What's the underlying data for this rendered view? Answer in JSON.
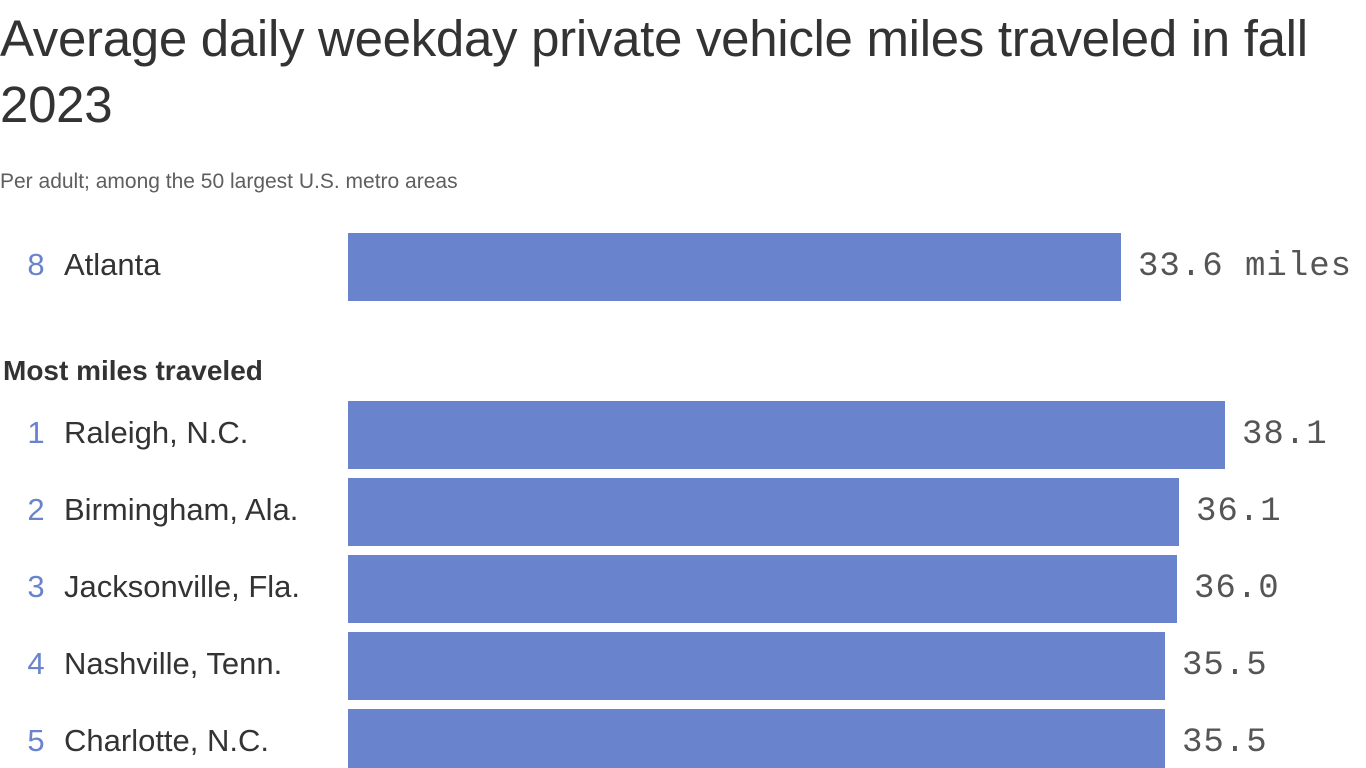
{
  "title": "Average daily weekday private vehicle miles traveled in fall 2023",
  "subtitle": "Per adult; among the 50 largest U.S. metro areas",
  "section_heading": "Most miles traveled",
  "colors": {
    "bar": "#6983cc",
    "rank": "#6983cc",
    "text": "#333333",
    "value": "#555555"
  },
  "highlight": {
    "rank": "8",
    "city": "Atlanta",
    "value": 33.6,
    "value_label": "33.6 miles"
  },
  "rows": [
    {
      "rank": "1",
      "city": "Raleigh, N.C.",
      "value": 38.1,
      "value_label": "38.1"
    },
    {
      "rank": "2",
      "city": "Birmingham, Ala.",
      "value": 36.1,
      "value_label": "36.1"
    },
    {
      "rank": "3",
      "city": "Jacksonville, Fla.",
      "value": 36.0,
      "value_label": "36.0"
    },
    {
      "rank": "4",
      "city": "Nashville, Tenn.",
      "value": 35.5,
      "value_label": "35.5"
    },
    {
      "rank": "5",
      "city": "Charlotte, N.C.",
      "value": 35.5,
      "value_label": "35.5"
    }
  ],
  "chart_data": {
    "type": "bar",
    "orientation": "horizontal",
    "title": "Average daily weekday private vehicle miles traveled in fall 2023",
    "subtitle": "Per adult; among the 50 largest U.S. metro areas",
    "unit": "miles",
    "categories": [
      "Atlanta",
      "Raleigh, N.C.",
      "Birmingham, Ala.",
      "Jacksonville, Fla.",
      "Nashville, Tenn.",
      "Charlotte, N.C."
    ],
    "ranks": [
      8,
      1,
      2,
      3,
      4,
      5
    ],
    "values": [
      33.6,
      38.1,
      36.1,
      36.0,
      35.5,
      35.5
    ],
    "xlim": [
      0,
      38.1
    ],
    "grid": false
  }
}
